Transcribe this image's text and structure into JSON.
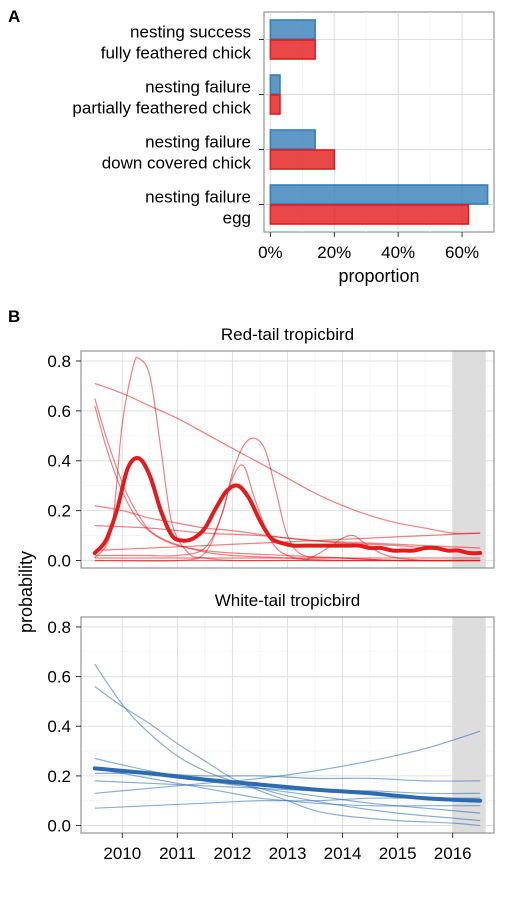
{
  "chart_data": [
    {
      "panel_label": "A",
      "type": "bar",
      "orientation": "horizontal",
      "categories": [
        [
          "nesting success",
          "fully feathered chick"
        ],
        [
          "nesting failure",
          "partially feathered chick"
        ],
        [
          "nesting failure",
          "down covered chick"
        ],
        [
          "nesting failure",
          "egg"
        ]
      ],
      "series": [
        {
          "color": "#377eb8",
          "values": [
            0.14,
            0.03,
            0.14,
            0.68
          ]
        },
        {
          "color": "#e41a1c",
          "values": [
            0.14,
            0.03,
            0.2,
            0.62
          ]
        }
      ],
      "xlabel": "proportion",
      "xlim": [
        -0.02,
        0.7
      ],
      "xticks": [
        "0%",
        "20%",
        "40%",
        "60%"
      ],
      "xtick_values": [
        0,
        0.2,
        0.4,
        0.6
      ],
      "grid": true
    },
    {
      "panel_label": "B",
      "type": "line",
      "ylabel": "probability",
      "shared_x_ticks": [
        "2010",
        "2011",
        "2012",
        "2013",
        "2014",
        "2015",
        "2016"
      ],
      "xlim": [
        2009.25,
        2016.75
      ],
      "ylim": [
        -0.03,
        0.84
      ],
      "yticks": [
        "0.0",
        "0.2",
        "0.4",
        "0.6",
        "0.8"
      ],
      "shaded_interval": [
        2016.0,
        2016.6
      ],
      "facets": [
        {
          "title": "Red-tail tropicbird",
          "color": "#e41a1c",
          "mean": {
            "x": [
              2009.5,
              2009.7,
              2009.9,
              2010.1,
              2010.3,
              2010.5,
              2010.7,
              2010.9,
              2011.1,
              2011.3,
              2011.5,
              2011.7,
              2011.9,
              2012.1,
              2012.3,
              2012.5,
              2012.7,
              2012.9,
              2013.1,
              2013.3,
              2013.5,
              2013.7,
              2013.9,
              2014.1,
              2014.3,
              2014.5,
              2014.7,
              2014.9,
              2015.1,
              2015.3,
              2015.5,
              2015.7,
              2015.9,
              2016.1,
              2016.3,
              2016.5
            ],
            "y": [
              0.03,
              0.08,
              0.2,
              0.37,
              0.41,
              0.34,
              0.2,
              0.1,
              0.08,
              0.09,
              0.13,
              0.21,
              0.28,
              0.3,
              0.25,
              0.16,
              0.09,
              0.07,
              0.06,
              0.06,
              0.06,
              0.06,
              0.06,
              0.06,
              0.06,
              0.05,
              0.05,
              0.04,
              0.04,
              0.04,
              0.05,
              0.05,
              0.04,
              0.04,
              0.03,
              0.03
            ]
          },
          "samples": [
            {
              "x": [
                2009.5,
                2009.8,
                2010.0,
                2010.2,
                2010.3,
                2010.5,
                2010.7,
                2010.9,
                2011.2,
                2011.5,
                2012.0,
                2013.0,
                2014.0,
                2015.0,
                2016.0,
                2016.5
              ],
              "y": [
                0.01,
                0.12,
                0.55,
                0.78,
                0.81,
                0.74,
                0.45,
                0.15,
                0.03,
                0.01,
                0.0,
                0.0,
                0.0,
                0.0,
                0.0,
                0.0
              ]
            },
            {
              "x": [
                2009.5,
                2010.0,
                2010.5,
                2011.0,
                2011.5,
                2011.8,
                2012.0,
                2012.2,
                2012.4,
                2012.6,
                2012.8,
                2013.0,
                2013.3,
                2014.0,
                2015.0,
                2016.0,
                2016.5
              ],
              "y": [
                0.02,
                0.02,
                0.02,
                0.02,
                0.05,
                0.18,
                0.35,
                0.46,
                0.49,
                0.44,
                0.27,
                0.1,
                0.02,
                0.01,
                0.0,
                0.0,
                0.0
              ]
            },
            {
              "x": [
                2009.5,
                2011.0,
                2011.5,
                2011.8,
                2012.0,
                2012.2,
                2012.4,
                2012.7,
                2013.0,
                2013.5,
                2014.0,
                2015.0,
                2016.0,
                2016.5
              ],
              "y": [
                0.0,
                0.0,
                0.03,
                0.18,
                0.33,
                0.38,
                0.25,
                0.08,
                0.02,
                0.0,
                0.0,
                0.0,
                0.0,
                0.0
              ]
            },
            {
              "x": [
                2009.5,
                2010.0,
                2010.5,
                2011.0,
                2011.5,
                2012.0,
                2012.5,
                2013.0,
                2013.5,
                2014.0,
                2014.5,
                2015.0,
                2015.5,
                2016.0,
                2016.5
              ],
              "y": [
                0.71,
                0.67,
                0.62,
                0.57,
                0.51,
                0.45,
                0.39,
                0.33,
                0.27,
                0.22,
                0.18,
                0.15,
                0.13,
                0.11,
                0.11
              ]
            },
            {
              "x": [
                2009.5,
                2009.7,
                2009.9,
                2010.1,
                2010.3,
                2010.5,
                2010.8,
                2011.2,
                2011.6,
                2012.0,
                2013.0,
                2014.0,
                2015.0,
                2016.0,
                2016.5
              ],
              "y": [
                0.65,
                0.5,
                0.37,
                0.26,
                0.18,
                0.12,
                0.08,
                0.05,
                0.03,
                0.02,
                0.01,
                0.0,
                0.0,
                0.0,
                0.0
              ]
            },
            {
              "x": [
                2009.5,
                2009.7,
                2009.9,
                2010.1,
                2010.3,
                2010.6,
                2011.0,
                2011.5,
                2012.0,
                2013.0,
                2014.0,
                2015.0,
                2016.0,
                2016.5
              ],
              "y": [
                0.62,
                0.46,
                0.33,
                0.23,
                0.16,
                0.1,
                0.06,
                0.04,
                0.03,
                0.02,
                0.01,
                0.0,
                0.0,
                0.0
              ]
            },
            {
              "x": [
                2009.5,
                2010.0,
                2010.5,
                2011.0,
                2011.5,
                2012.0,
                2013.0,
                2014.0,
                2015.0,
                2016.0,
                2016.5
              ],
              "y": [
                0.22,
                0.2,
                0.17,
                0.15,
                0.13,
                0.12,
                0.09,
                0.07,
                0.06,
                0.04,
                0.03
              ]
            },
            {
              "x": [
                2009.5,
                2010.5,
                2011.5,
                2012.5,
                2013.5,
                2014.5,
                2015.5,
                2016.5
              ],
              "y": [
                0.14,
                0.13,
                0.11,
                0.1,
                0.08,
                0.07,
                0.06,
                0.05
              ]
            },
            {
              "x": [
                2009.5,
                2010.5,
                2011.5,
                2012.5,
                2013.5,
                2014.5,
                2015.5,
                2016.5
              ],
              "y": [
                0.04,
                0.05,
                0.06,
                0.07,
                0.08,
                0.09,
                0.1,
                0.11
              ]
            },
            {
              "x": [
                2009.5,
                2013.0,
                2013.4,
                2013.8,
                2014.0,
                2014.2,
                2014.4,
                2014.8,
                2015.5,
                2016.5
              ],
              "y": [
                0.0,
                0.0,
                0.01,
                0.06,
                0.09,
                0.1,
                0.07,
                0.02,
                0.0,
                0.0
              ]
            },
            {
              "x": [
                2009.5,
                2016.5
              ],
              "y": [
                0.01,
                0.01
              ]
            }
          ]
        },
        {
          "title": "White-tail tropicbird",
          "color": "#2c6bb0",
          "mean": {
            "x": [
              2009.5,
              2010.5,
              2011.5,
              2012.5,
              2013.5,
              2014.5,
              2015.5,
              2016.5
            ],
            "y": [
              0.23,
              0.21,
              0.185,
              0.165,
              0.145,
              0.13,
              0.11,
              0.1
            ]
          },
          "samples": [
            {
              "x": [
                2009.5,
                2009.8,
                2010.1,
                2010.5,
                2011.0,
                2011.5,
                2012.0,
                2012.5,
                2013.0,
                2014.0,
                2015.0,
                2016.0,
                2016.5
              ],
              "y": [
                0.65,
                0.55,
                0.46,
                0.37,
                0.28,
                0.22,
                0.18,
                0.15,
                0.12,
                0.08,
                0.05,
                0.03,
                0.02
              ]
            },
            {
              "x": [
                2009.5,
                2010.0,
                2010.5,
                2011.0,
                2011.5,
                2012.0,
                2012.5,
                2013.0,
                2013.5,
                2014.0,
                2015.0,
                2016.0,
                2016.5
              ],
              "y": [
                0.56,
                0.48,
                0.41,
                0.33,
                0.26,
                0.19,
                0.14,
                0.1,
                0.06,
                0.04,
                0.02,
                0.01,
                0.0
              ]
            },
            {
              "x": [
                2009.5,
                2010.5,
                2011.5,
                2012.5,
                2013.5,
                2014.5,
                2015.5,
                2016.5
              ],
              "y": [
                0.27,
                0.22,
                0.18,
                0.15,
                0.12,
                0.09,
                0.07,
                0.05
              ]
            },
            {
              "x": [
                2009.5,
                2010.5,
                2011.5,
                2012.5,
                2013.5,
                2014.5,
                2015.5,
                2016.5
              ],
              "y": [
                0.21,
                0.21,
                0.2,
                0.2,
                0.19,
                0.19,
                0.18,
                0.18
              ]
            },
            {
              "x": [
                2009.5,
                2010.5,
                2011.5,
                2012.5,
                2013.5,
                2014.5,
                2015.5,
                2016.5
              ],
              "y": [
                0.18,
                0.17,
                0.16,
                0.15,
                0.14,
                0.14,
                0.13,
                0.13
              ]
            },
            {
              "x": [
                2009.5,
                2010.5,
                2011.5,
                2012.5,
                2013.5,
                2014.5,
                2015.5,
                2016.5
              ],
              "y": [
                0.13,
                0.15,
                0.17,
                0.19,
                0.22,
                0.26,
                0.31,
                0.38
              ]
            },
            {
              "x": [
                2009.5,
                2010.5,
                2011.5,
                2012.5,
                2013.5,
                2014.5,
                2015.5,
                2016.5
              ],
              "y": [
                0.07,
                0.08,
                0.09,
                0.1,
                0.1,
                0.11,
                0.11,
                0.11
              ]
            },
            {
              "x": [
                2009.5,
                2010.0,
                2010.5,
                2011.0,
                2011.5,
                2012.0,
                2012.5,
                2013.0,
                2013.5,
                2014.5,
                2015.5,
                2016.5
              ],
              "y": [
                0.23,
                0.21,
                0.19,
                0.17,
                0.15,
                0.13,
                0.11,
                0.1,
                0.09,
                0.08,
                0.08,
                0.08
              ]
            }
          ]
        }
      ]
    }
  ]
}
